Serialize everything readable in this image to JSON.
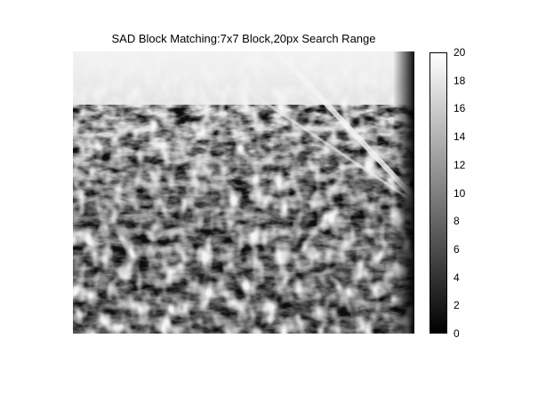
{
  "chart_data": {
    "type": "heatmap",
    "title": "SAD Block Matching:7x7 Block,20px Search Range",
    "colormap": "gray",
    "colorbar": {
      "range": [
        0,
        20
      ],
      "ticks": [
        0,
        2,
        4,
        6,
        8,
        10,
        12,
        14,
        16,
        18,
        20
      ]
    },
    "grid": false
  }
}
